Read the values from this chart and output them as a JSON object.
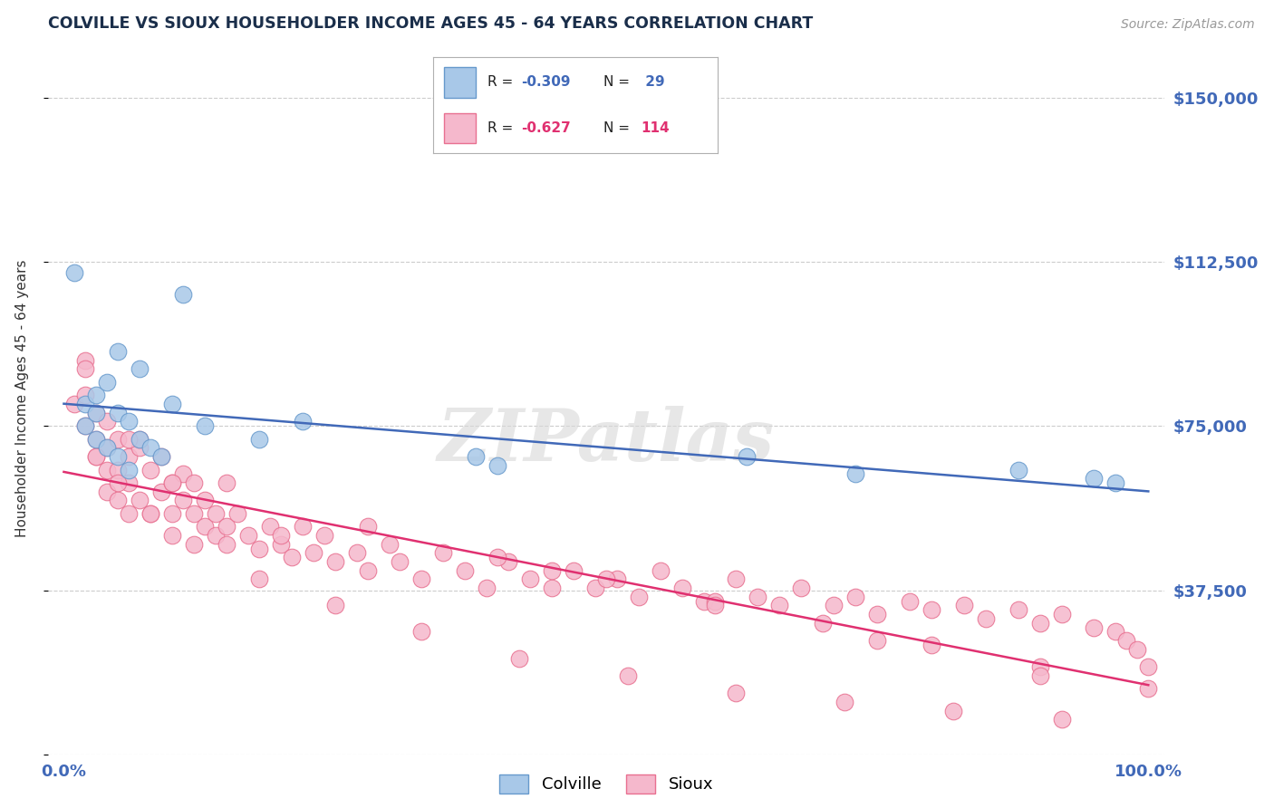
{
  "title": "COLVILLE VS SIOUX HOUSEHOLDER INCOME AGES 45 - 64 YEARS CORRELATION CHART",
  "source": "Source: ZipAtlas.com",
  "ylabel": "Householder Income Ages 45 - 64 years",
  "ylim": [
    0,
    162500
  ],
  "xlim": [
    -0.015,
    1.015
  ],
  "yticks": [
    0,
    37500,
    75000,
    112500,
    150000
  ],
  "ytick_labels": [
    "",
    "$37,500",
    "$75,000",
    "$112,500",
    "$150,000"
  ],
  "xtick_labels": [
    "0.0%",
    "100.0%"
  ],
  "colville_fill": "#a8c8e8",
  "colville_edge": "#6699cc",
  "sioux_fill": "#f5b8cc",
  "sioux_edge": "#e87090",
  "blue_line": "#4169b8",
  "pink_line": "#e03070",
  "title_color": "#1a2e4a",
  "tick_color": "#4169b8",
  "ylabel_color": "#333333",
  "grid_color": "#cccccc",
  "watermark_color": "#d8d8d8",
  "colville_x": [
    0.01,
    0.02,
    0.02,
    0.03,
    0.03,
    0.03,
    0.04,
    0.04,
    0.05,
    0.05,
    0.05,
    0.06,
    0.06,
    0.07,
    0.07,
    0.08,
    0.09,
    0.1,
    0.11,
    0.13,
    0.18,
    0.22,
    0.38,
    0.4,
    0.63,
    0.73,
    0.88,
    0.95,
    0.97
  ],
  "colville_y": [
    110000,
    80000,
    75000,
    82000,
    78000,
    72000,
    85000,
    70000,
    78000,
    68000,
    92000,
    76000,
    65000,
    88000,
    72000,
    70000,
    68000,
    80000,
    105000,
    75000,
    72000,
    76000,
    68000,
    66000,
    68000,
    64000,
    65000,
    63000,
    62000
  ],
  "sioux_x": [
    0.01,
    0.02,
    0.02,
    0.02,
    0.03,
    0.03,
    0.03,
    0.04,
    0.04,
    0.04,
    0.04,
    0.05,
    0.05,
    0.05,
    0.06,
    0.06,
    0.06,
    0.07,
    0.07,
    0.08,
    0.08,
    0.09,
    0.09,
    0.1,
    0.1,
    0.1,
    0.11,
    0.11,
    0.12,
    0.12,
    0.13,
    0.13,
    0.14,
    0.14,
    0.15,
    0.15,
    0.16,
    0.17,
    0.18,
    0.19,
    0.2,
    0.21,
    0.22,
    0.23,
    0.24,
    0.25,
    0.27,
    0.28,
    0.3,
    0.31,
    0.33,
    0.35,
    0.37,
    0.39,
    0.41,
    0.43,
    0.45,
    0.47,
    0.49,
    0.51,
    0.53,
    0.55,
    0.57,
    0.59,
    0.62,
    0.64,
    0.66,
    0.68,
    0.71,
    0.73,
    0.75,
    0.78,
    0.8,
    0.83,
    0.85,
    0.88,
    0.9,
    0.92,
    0.95,
    0.97,
    0.98,
    0.99,
    1.0,
    1.0,
    0.03,
    0.05,
    0.08,
    0.12,
    0.18,
    0.25,
    0.33,
    0.42,
    0.52,
    0.62,
    0.72,
    0.82,
    0.92,
    0.4,
    0.5,
    0.6,
    0.7,
    0.8,
    0.9,
    0.07,
    0.15,
    0.28,
    0.45,
    0.6,
    0.75,
    0.9,
    0.02,
    0.06,
    0.1,
    0.2
  ],
  "sioux_y": [
    80000,
    90000,
    75000,
    82000,
    78000,
    68000,
    72000,
    70000,
    76000,
    65000,
    60000,
    72000,
    65000,
    58000,
    68000,
    62000,
    55000,
    70000,
    58000,
    65000,
    55000,
    60000,
    68000,
    62000,
    55000,
    50000,
    58000,
    64000,
    55000,
    62000,
    52000,
    58000,
    50000,
    55000,
    52000,
    48000,
    55000,
    50000,
    47000,
    52000,
    48000,
    45000,
    52000,
    46000,
    50000,
    44000,
    46000,
    42000,
    48000,
    44000,
    40000,
    46000,
    42000,
    38000,
    44000,
    40000,
    38000,
    42000,
    38000,
    40000,
    36000,
    42000,
    38000,
    35000,
    40000,
    36000,
    34000,
    38000,
    34000,
    36000,
    32000,
    35000,
    33000,
    34000,
    31000,
    33000,
    30000,
    32000,
    29000,
    28000,
    26000,
    24000,
    20000,
    15000,
    68000,
    62000,
    55000,
    48000,
    40000,
    34000,
    28000,
    22000,
    18000,
    14000,
    12000,
    10000,
    8000,
    45000,
    40000,
    35000,
    30000,
    25000,
    20000,
    72000,
    62000,
    52000,
    42000,
    34000,
    26000,
    18000,
    88000,
    72000,
    62000,
    50000
  ]
}
